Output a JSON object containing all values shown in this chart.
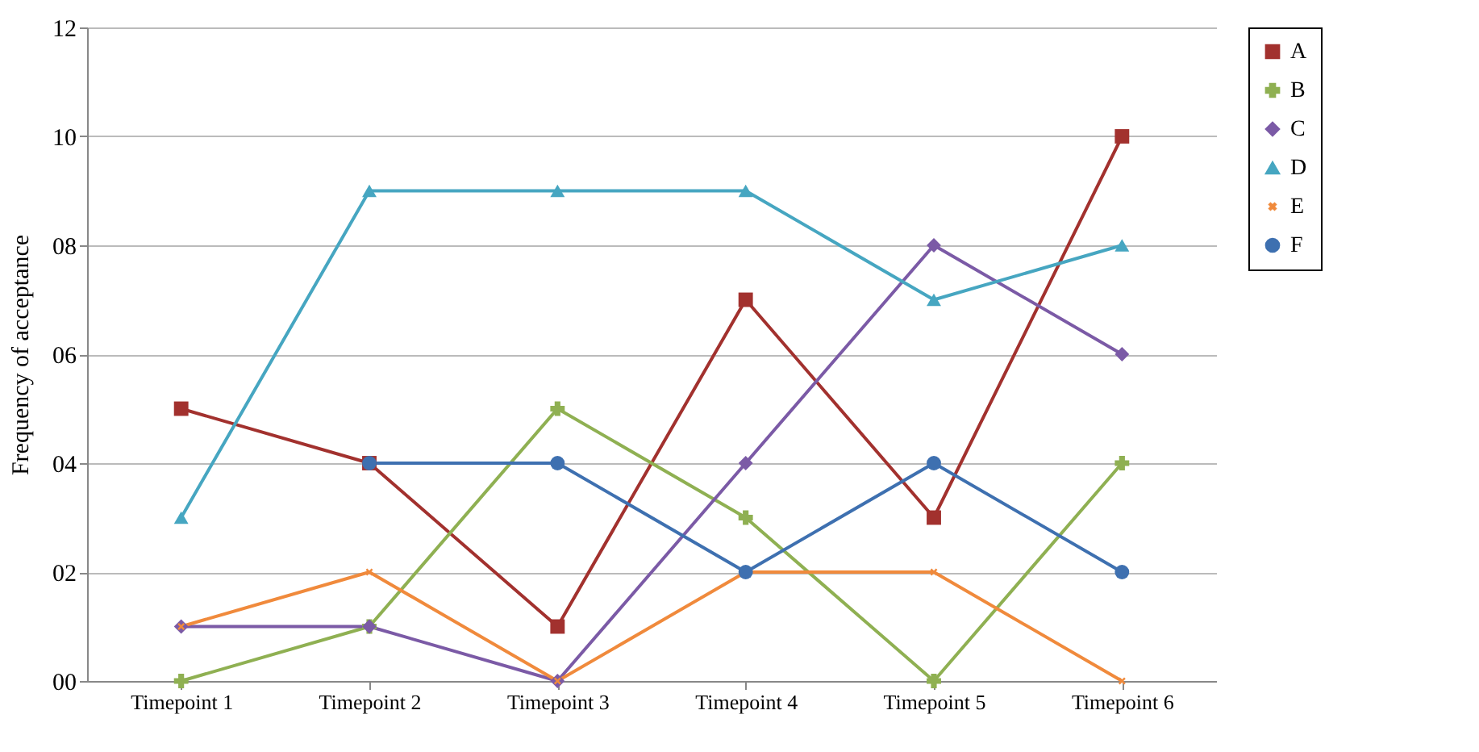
{
  "chart_data": {
    "type": "line",
    "ylabel": "Frequency of acceptance",
    "categories": [
      "Timepoint 1",
      "Timepoint 2",
      "Timepoint 3",
      "Timepoint 4",
      "Timepoint 5",
      "Timepoint 6"
    ],
    "series": [
      {
        "name": "A",
        "color": "#a2312e",
        "marker": "square",
        "values": [
          5,
          4,
          1,
          7,
          3,
          10
        ]
      },
      {
        "name": "B",
        "color": "#8fb052",
        "marker": "cross",
        "values": [
          0,
          1,
          5,
          3,
          0,
          4
        ]
      },
      {
        "name": "C",
        "color": "#7b5aa6",
        "marker": "diamond",
        "values": [
          1,
          1,
          0,
          4,
          8,
          6
        ]
      },
      {
        "name": "D",
        "color": "#46a6c1",
        "marker": "triangle",
        "values": [
          3,
          9,
          9,
          9,
          7,
          8
        ]
      },
      {
        "name": "E",
        "color": "#f08a3c",
        "marker": "x",
        "values": [
          1,
          2,
          0,
          2,
          2,
          0
        ]
      },
      {
        "name": "F",
        "color": "#3e70b0",
        "marker": "circle",
        "values": [
          null,
          4,
          4,
          2,
          4,
          2
        ]
      }
    ],
    "ylim": [
      0,
      12
    ],
    "yticks": [
      {
        "value": 0,
        "label": "00"
      },
      {
        "value": 2,
        "label": "02"
      },
      {
        "value": 4,
        "label": "04"
      },
      {
        "value": 6,
        "label": "06"
      },
      {
        "value": 8,
        "label": "08"
      },
      {
        "value": 10,
        "label": "10"
      },
      {
        "value": 12,
        "label": "12"
      }
    ],
    "grid": "y",
    "legend": "right",
    "line_style": "solid"
  }
}
